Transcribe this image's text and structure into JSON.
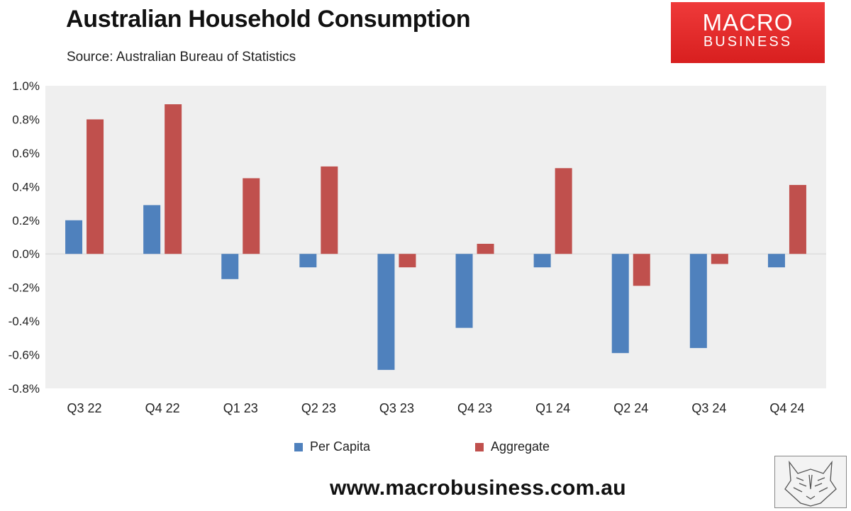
{
  "header": {
    "title": "Australian Household Consumption",
    "source": "Source: Australian Bureau of Statistics"
  },
  "logo": {
    "line1": "MACRO",
    "line2": "BUSINESS"
  },
  "footer": {
    "website": "www.macrobusiness.com.au"
  },
  "colors": {
    "per_capita": "#4f81bd",
    "aggregate": "#c0504d",
    "plot_bg": "#efefef"
  },
  "icons": {
    "corner_image": "wolf-head-icon"
  },
  "chart_data": {
    "type": "bar",
    "title": "Australian Household Consumption",
    "categories": [
      "Q3 22",
      "Q4 22",
      "Q1 23",
      "Q2 23",
      "Q3 23",
      "Q4 23",
      "Q1 24",
      "Q2 24",
      "Q3 24",
      "Q4 24"
    ],
    "series": [
      {
        "name": "Per Capita",
        "values": [
          0.2,
          0.29,
          -0.15,
          -0.08,
          -0.69,
          -0.44,
          -0.08,
          -0.59,
          -0.56,
          -0.08
        ]
      },
      {
        "name": "Aggregate",
        "values": [
          0.8,
          0.89,
          0.45,
          0.52,
          -0.08,
          0.06,
          0.51,
          -0.19,
          -0.06,
          0.41
        ]
      }
    ],
    "yticks": [
      "-0.8%",
      "-0.6%",
      "-0.4%",
      "-0.2%",
      "0.0%",
      "0.2%",
      "0.4%",
      "0.6%",
      "0.8%",
      "1.0%"
    ],
    "ylim": [
      -0.8,
      1.0
    ],
    "xlabel": "",
    "ylabel": "",
    "legend_position": "bottom",
    "grid": false
  }
}
